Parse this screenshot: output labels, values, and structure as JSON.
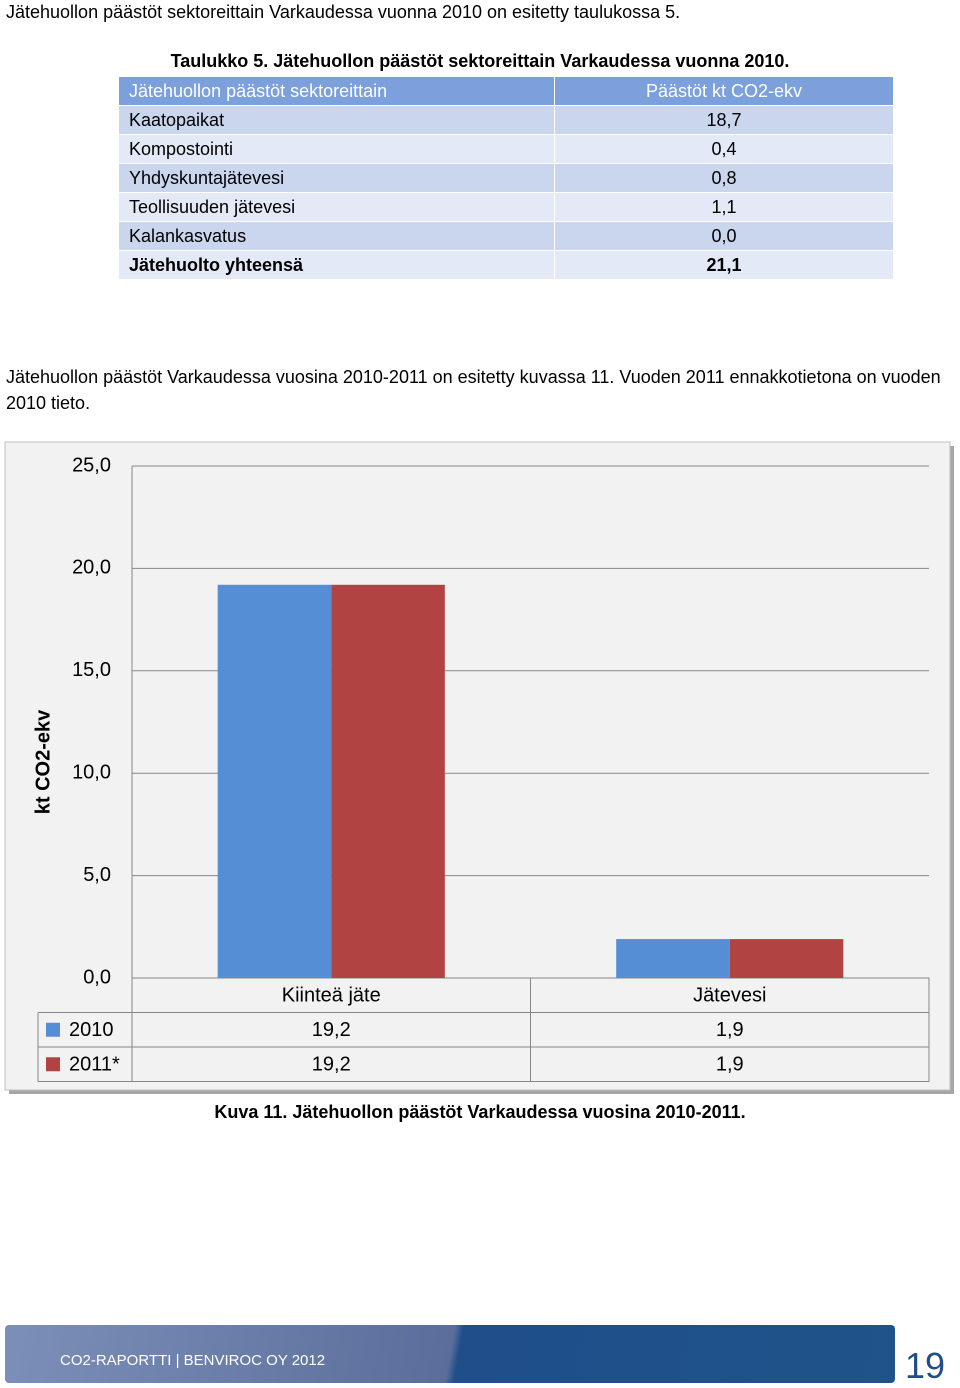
{
  "intro": "Jätehuollon päästöt sektoreittain Varkaudessa vuonna 2010 on esitetty taulukossa 5.",
  "table_caption": "Taulukko 5. Jätehuollon päästöt sektoreittain Varkaudessa vuonna 2010.",
  "table": {
    "header": [
      "Jätehuollon päästöt sektoreittain",
      "Päästöt kt CO2-ekv"
    ],
    "rows": [
      [
        "Kaatopaikat",
        "18,7"
      ],
      [
        "Kompostointi",
        "0,4"
      ],
      [
        "Yhdyskuntajätevesi",
        "0,8"
      ],
      [
        "Teollisuuden jätevesi",
        "1,1"
      ],
      [
        "Kalankasvatus",
        "0,0"
      ],
      [
        "Jätehuolto yhteensä",
        "21,1"
      ]
    ]
  },
  "paragraph": "Jätehuollon päästöt Varkaudessa  vuosina 2010-2011 on esitetty kuvassa 11. Vuoden 2011 ennakkotietona on vuoden 2010 tieto.",
  "chart_data": {
    "type": "bar",
    "y_label": "kt CO2-ekv",
    "categories": [
      "Kiinteä jäte",
      "Jätevesi"
    ],
    "series": [
      {
        "name": "2010",
        "color": "#558ed5",
        "values": [
          19.2,
          1.9
        ],
        "value_labels": [
          "19,2",
          "1,9"
        ]
      },
      {
        "name": "2011*",
        "color": "#b14442",
        "values": [
          19.2,
          1.9
        ],
        "value_labels": [
          "19,2",
          "1,9"
        ]
      }
    ],
    "ylim": [
      0,
      25
    ],
    "yticks": [
      {
        "value": 0,
        "label": "0,0"
      },
      {
        "value": 5,
        "label": "5,0"
      },
      {
        "value": 10,
        "label": "10,0"
      },
      {
        "value": 15,
        "label": "15,0"
      },
      {
        "value": 20,
        "label": "20,0"
      },
      {
        "value": 25,
        "label": "25,0"
      }
    ],
    "grid": true
  },
  "figure_caption": "Kuva 11. Jätehuollon päästöt Varkaudessa  vuosina 2010-2011.",
  "footer": {
    "text": "CO2-RAPORTTI | BENVIROC OY 2012",
    "page_number": "19"
  }
}
